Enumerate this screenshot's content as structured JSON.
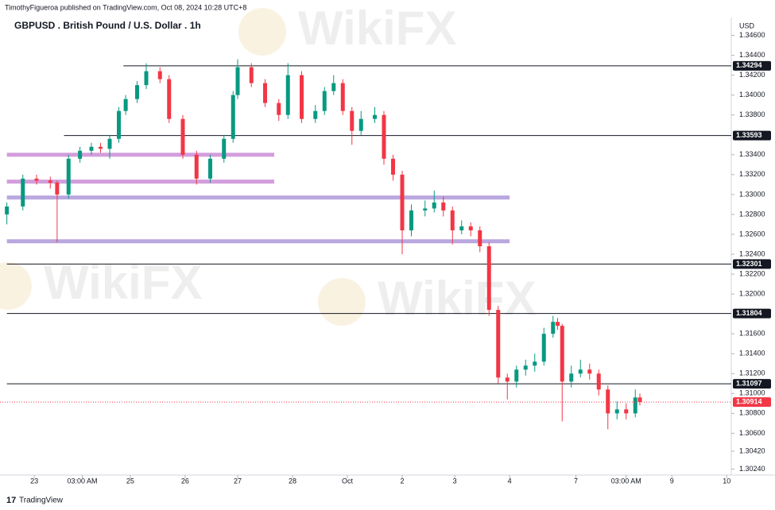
{
  "chart_data": {
    "type": "candlestick",
    "header": "TimothyFigueroa published on TradingView.com, Oct 08, 2024 10:28 UTC+8",
    "title": "GBPUSD . British Pound / U.S. Dollar . 1h",
    "currency": "USD",
    "watermark": "WikiFX",
    "footer": "TradingView",
    "up_color": "#089981",
    "down_color": "#f23645",
    "xlim": [
      0,
      320
    ],
    "ylim": [
      1.3018,
      1.3478
    ],
    "xticks": [
      {
        "value": 15,
        "label": "23"
      },
      {
        "value": 36,
        "label": "03:00 AM"
      },
      {
        "value": 57,
        "label": "25"
      },
      {
        "value": 81,
        "label": "26"
      },
      {
        "value": 104,
        "label": "27"
      },
      {
        "value": 128,
        "label": "28"
      },
      {
        "value": 152,
        "label": "Oct"
      },
      {
        "value": 176,
        "label": "2"
      },
      {
        "value": 199,
        "label": "3"
      },
      {
        "value": 223,
        "label": "4"
      },
      {
        "value": 252,
        "label": "7"
      },
      {
        "value": 274,
        "label": "03:00 AM"
      },
      {
        "value": 294,
        "label": "9"
      },
      {
        "value": 318,
        "label": "10"
      }
    ],
    "yticks": [
      {
        "value": 1.346,
        "label": "1.34600"
      },
      {
        "value": 1.344,
        "label": "1.34400"
      },
      {
        "value": 1.342,
        "label": "1.34200"
      },
      {
        "value": 1.34,
        "label": "1.34000"
      },
      {
        "value": 1.338,
        "label": "1.33800"
      },
      {
        "value": 1.334,
        "label": "1.33400"
      },
      {
        "value": 1.332,
        "label": "1.33200"
      },
      {
        "value": 1.33,
        "label": "1.33000"
      },
      {
        "value": 1.328,
        "label": "1.32800"
      },
      {
        "value": 1.326,
        "label": "1.32600"
      },
      {
        "value": 1.324,
        "label": "1.32400"
      },
      {
        "value": 1.322,
        "label": "1.32200"
      },
      {
        "value": 1.32,
        "label": "1.32000"
      },
      {
        "value": 1.316,
        "label": "1.31600"
      },
      {
        "value": 1.314,
        "label": "1.31400"
      },
      {
        "value": 1.312,
        "label": "1.31200"
      },
      {
        "value": 1.31,
        "label": "1.31000"
      },
      {
        "value": 1.308,
        "label": "1.30800"
      },
      {
        "value": 1.306,
        "label": "1.30600"
      },
      {
        "value": 1.3042,
        "label": "1.30420"
      },
      {
        "value": 1.3024,
        "label": "1.30240"
      }
    ],
    "levels": [
      {
        "value": 1.34294,
        "start": 54
      },
      {
        "value": 1.33593,
        "start": 28
      },
      {
        "value": 1.32301,
        "start": 3
      },
      {
        "value": 1.31804,
        "start": 3
      },
      {
        "value": 1.31097,
        "start": 3
      }
    ],
    "zones": [
      {
        "low": 1.3338,
        "high": 1.3342,
        "start": 3,
        "end": 120,
        "color": "#ce93d8"
      },
      {
        "low": 1.3311,
        "high": 1.3315,
        "start": 3,
        "end": 120,
        "color": "#ce93d8"
      },
      {
        "low": 1.3295,
        "high": 1.3299,
        "start": 3,
        "end": 223,
        "color": "#b39ddb"
      },
      {
        "low": 1.3251,
        "high": 1.3255,
        "start": 3,
        "end": 223,
        "color": "#b39ddb"
      }
    ],
    "last_price": 1.30914,
    "candles": {
      "x": [
        3,
        10,
        16,
        22,
        25,
        30,
        35,
        40,
        44,
        48,
        52,
        55,
        60,
        64,
        70,
        74,
        80,
        86,
        92,
        98,
        102,
        104,
        110,
        116,
        122,
        126,
        132,
        138,
        142,
        146,
        150,
        154,
        158,
        164,
        168,
        172,
        176,
        180,
        186,
        190,
        194,
        198,
        202,
        206,
        210,
        214,
        218,
        222,
        226,
        230,
        234,
        238,
        242,
        244,
        246,
        250,
        254,
        258,
        262,
        266,
        270,
        274,
        278,
        280
      ],
      "open": [
        1.328,
        1.3288,
        1.3316,
        1.3314,
        1.3312,
        1.33,
        1.3336,
        1.3344,
        1.3348,
        1.3346,
        1.3356,
        1.3384,
        1.3396,
        1.341,
        1.3424,
        1.3416,
        1.3376,
        1.334,
        1.3316,
        1.3336,
        1.3356,
        1.34,
        1.3428,
        1.3412,
        1.3392,
        1.338,
        1.342,
        1.3376,
        1.3384,
        1.3404,
        1.3412,
        1.3384,
        1.3364,
        1.3376,
        1.338,
        1.3336,
        1.332,
        1.3264,
        1.3284,
        1.3286,
        1.3292,
        1.3284,
        1.3264,
        1.3268,
        1.3264,
        1.3248,
        1.3184,
        1.3116,
        1.3112,
        1.3124,
        1.3128,
        1.3132,
        1.316,
        1.3172,
        1.3168,
        1.3112,
        1.312,
        1.3124,
        1.312,
        1.3104,
        1.308,
        1.3084,
        1.308,
        1.3096
      ],
      "high": [
        1.3292,
        1.332,
        1.332,
        1.3318,
        1.3314,
        1.334,
        1.3348,
        1.3352,
        1.3352,
        1.336,
        1.3388,
        1.34,
        1.3414,
        1.3432,
        1.3428,
        1.342,
        1.338,
        1.3344,
        1.334,
        1.336,
        1.3404,
        1.3436,
        1.3432,
        1.3416,
        1.3396,
        1.3432,
        1.3424,
        1.339,
        1.3408,
        1.342,
        1.3416,
        1.3388,
        1.3384,
        1.3388,
        1.3384,
        1.334,
        1.3324,
        1.329,
        1.3294,
        1.3304,
        1.3298,
        1.3288,
        1.3274,
        1.3272,
        1.3268,
        1.3252,
        1.3188,
        1.312,
        1.3128,
        1.3134,
        1.314,
        1.3166,
        1.3178,
        1.3176,
        1.317,
        1.3128,
        1.3134,
        1.313,
        1.3124,
        1.3108,
        1.3092,
        1.309,
        1.3104,
        1.31
      ],
      "low": [
        1.327,
        1.3284,
        1.331,
        1.3306,
        1.3252,
        1.3296,
        1.3332,
        1.334,
        1.3342,
        1.3336,
        1.3352,
        1.338,
        1.3392,
        1.3406,
        1.3412,
        1.3372,
        1.3336,
        1.331,
        1.3312,
        1.3332,
        1.3352,
        1.3396,
        1.3408,
        1.3388,
        1.3374,
        1.3376,
        1.3372,
        1.3372,
        1.338,
        1.34,
        1.338,
        1.335,
        1.336,
        1.3372,
        1.333,
        1.3314,
        1.324,
        1.3258,
        1.3278,
        1.3282,
        1.3278,
        1.325,
        1.326,
        1.3258,
        1.3242,
        1.3178,
        1.311,
        1.3094,
        1.3106,
        1.3118,
        1.3122,
        1.3128,
        1.3156,
        1.3164,
        1.3072,
        1.3106,
        1.3116,
        1.3114,
        1.3098,
        1.3064,
        1.3074,
        1.3074,
        1.3076,
        1.3088
      ],
      "close": [
        1.3288,
        1.3316,
        1.3314,
        1.3312,
        1.33,
        1.3336,
        1.3344,
        1.3348,
        1.3346,
        1.3356,
        1.3384,
        1.3396,
        1.341,
        1.3424,
        1.3416,
        1.3376,
        1.334,
        1.3316,
        1.3336,
        1.3356,
        1.34,
        1.3428,
        1.3412,
        1.3392,
        1.338,
        1.342,
        1.3376,
        1.3384,
        1.3404,
        1.3412,
        1.3384,
        1.3364,
        1.3376,
        1.338,
        1.3336,
        1.332,
        1.3264,
        1.3284,
        1.3286,
        1.3292,
        1.3284,
        1.3264,
        1.3268,
        1.3264,
        1.3248,
        1.3184,
        1.3116,
        1.3112,
        1.3124,
        1.3128,
        1.3132,
        1.316,
        1.3172,
        1.3168,
        1.3112,
        1.312,
        1.3124,
        1.312,
        1.3104,
        1.308,
        1.3084,
        1.308,
        1.3096,
        1.30914
      ]
    }
  }
}
